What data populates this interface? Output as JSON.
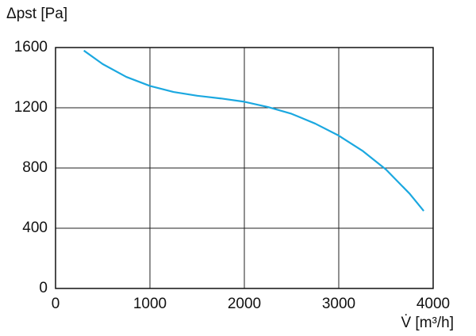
{
  "chart_data": {
    "type": "line",
    "y_label": "Δpst [Pa]",
    "x_label": "V̇ [m³/h]",
    "x": [
      300,
      500,
      750,
      1000,
      1250,
      1500,
      1750,
      2000,
      2250,
      2500,
      2750,
      3000,
      3250,
      3500,
      3750,
      3900
    ],
    "series": [
      {
        "color": "#1ba8e0",
        "values": [
          1580,
          1490,
          1405,
          1345,
          1305,
          1280,
          1262,
          1240,
          1205,
          1160,
          1095,
          1015,
          915,
          790,
          630,
          515
        ]
      }
    ],
    "xlim": [
      0,
      4000
    ],
    "xticks": [
      0,
      1000,
      2000,
      3000,
      4000
    ],
    "ylim": [
      0,
      1600
    ],
    "yticks": [
      0,
      400,
      800,
      1200,
      1600
    ],
    "grid": true
  }
}
